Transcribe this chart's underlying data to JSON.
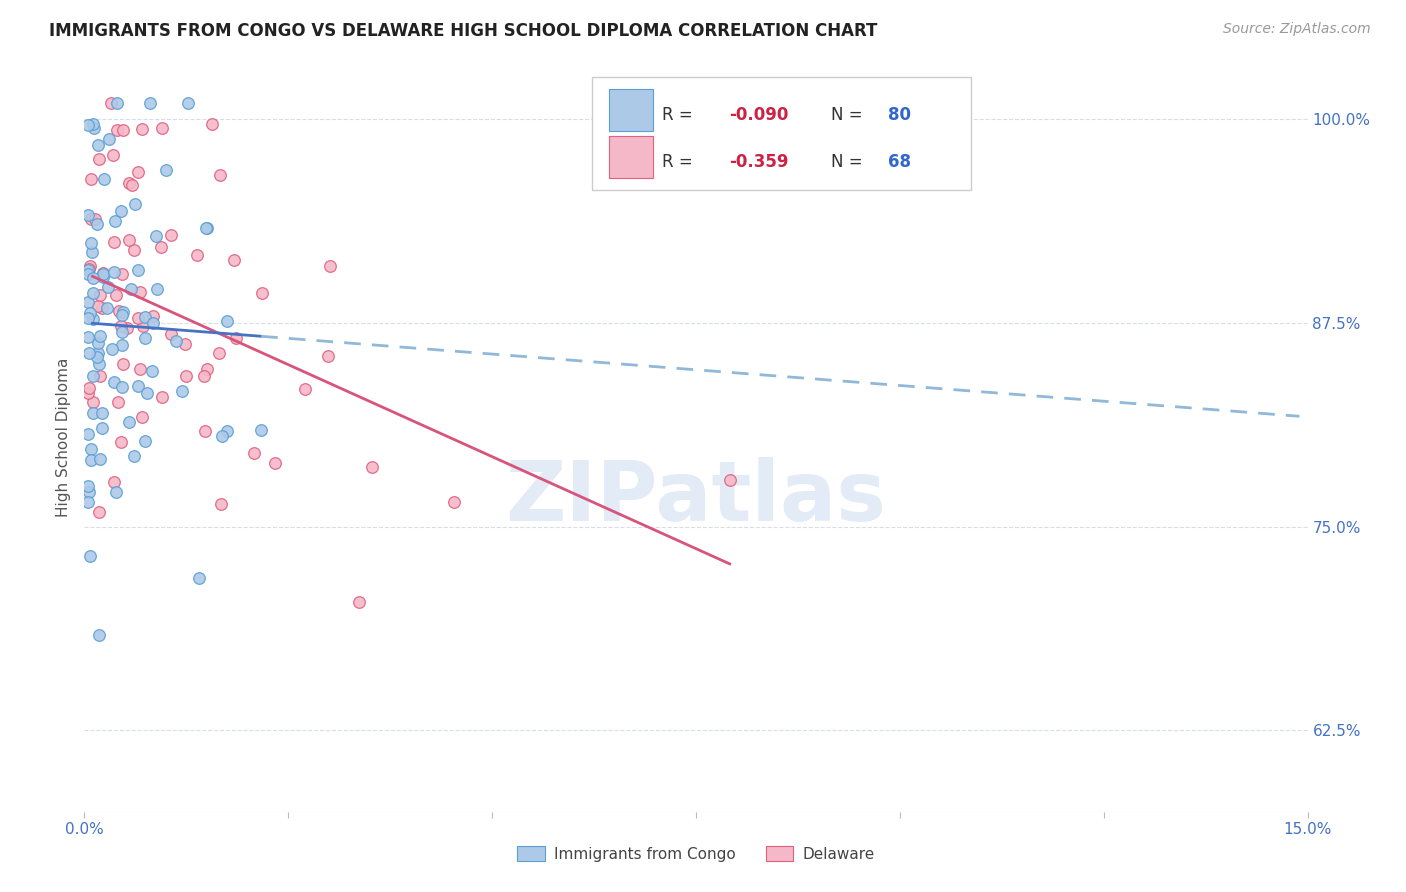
{
  "title": "IMMIGRANTS FROM CONGO VS DELAWARE HIGH SCHOOL DIPLOMA CORRELATION CHART",
  "source": "Source: ZipAtlas.com",
  "ylabel": "High School Diploma",
  "ytick_labels": [
    "62.5%",
    "75.0%",
    "87.5%",
    "100.0%"
  ],
  "ytick_vals": [
    0.625,
    0.75,
    0.875,
    1.0
  ],
  "xlim": [
    0.0,
    0.15
  ],
  "ylim": [
    0.575,
    1.035
  ],
  "blue_color": "#adc9e8",
  "pink_color": "#f5b8c8",
  "blue_edge_color": "#5a9fd4",
  "pink_edge_color": "#e06080",
  "blue_line_color": "#4472c4",
  "pink_line_color": "#d9547a",
  "blue_dash_color": "#90b8d8",
  "watermark_text": "ZIPatlas",
  "legend_r_blue": "R = -0.090",
  "legend_n_blue": "N = 80",
  "legend_r_pink": "R =  -0.359",
  "legend_n_pink": "N = 68",
  "r_blue": -0.09,
  "n_blue": 80,
  "r_pink": -0.359,
  "n_pink": 68,
  "grid_color": "#d8dde8",
  "tick_color": "#4472c4",
  "label_color": "#555555"
}
